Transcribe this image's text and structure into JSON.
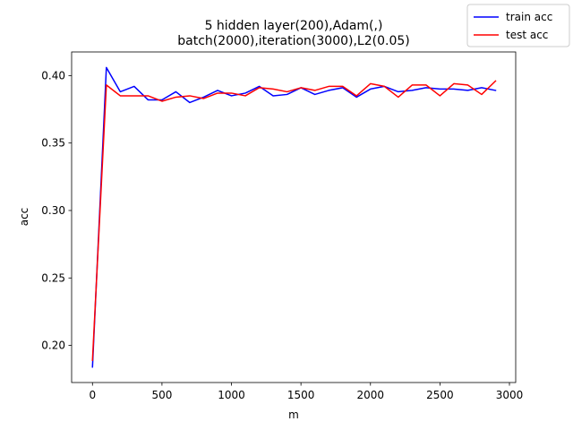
{
  "chart_data": {
    "type": "line",
    "title_line1": "5 hidden layer(200),Adam(,)",
    "title_line2": "batch(2000),iteration(3000),L2(0.05)",
    "xlabel": "m",
    "ylabel": "acc",
    "xlim": [
      -150,
      3045
    ],
    "ylim": [
      0.1725,
      0.4175
    ],
    "xticks": [
      0,
      500,
      1000,
      1500,
      2000,
      2500,
      3000
    ],
    "yticks": [
      0.2,
      0.25,
      0.3,
      0.35,
      0.4
    ],
    "ytick_labels": [
      "0.20",
      "0.25",
      "0.30",
      "0.35",
      "0.40"
    ],
    "xtick_labels": [
      "0",
      "500",
      "1000",
      "1500",
      "2000",
      "2500",
      "3000"
    ],
    "legend_position": "top-right",
    "x": [
      0,
      100,
      200,
      300,
      400,
      500,
      600,
      700,
      800,
      900,
      1000,
      1100,
      1200,
      1300,
      1400,
      1500,
      1600,
      1700,
      1800,
      1900,
      2000,
      2100,
      2200,
      2300,
      2400,
      2500,
      2600,
      2700,
      2800,
      2900
    ],
    "series": [
      {
        "name": "train acc",
        "color": "#0000ff",
        "values": [
          0.184,
          0.406,
          0.388,
          0.392,
          0.382,
          0.382,
          0.388,
          0.38,
          0.384,
          0.389,
          0.385,
          0.387,
          0.392,
          0.385,
          0.386,
          0.391,
          0.386,
          0.389,
          0.391,
          0.384,
          0.39,
          0.392,
          0.388,
          0.389,
          0.391,
          0.39,
          0.39,
          0.389,
          0.391,
          0.389
        ]
      },
      {
        "name": "test acc",
        "color": "#ff0000",
        "values": [
          0.189,
          0.393,
          0.385,
          0.385,
          0.385,
          0.381,
          0.384,
          0.385,
          0.383,
          0.387,
          0.387,
          0.385,
          0.391,
          0.39,
          0.388,
          0.391,
          0.389,
          0.392,
          0.392,
          0.385,
          0.394,
          0.392,
          0.384,
          0.393,
          0.393,
          0.385,
          0.394,
          0.393,
          0.386,
          0.396
        ]
      }
    ]
  }
}
